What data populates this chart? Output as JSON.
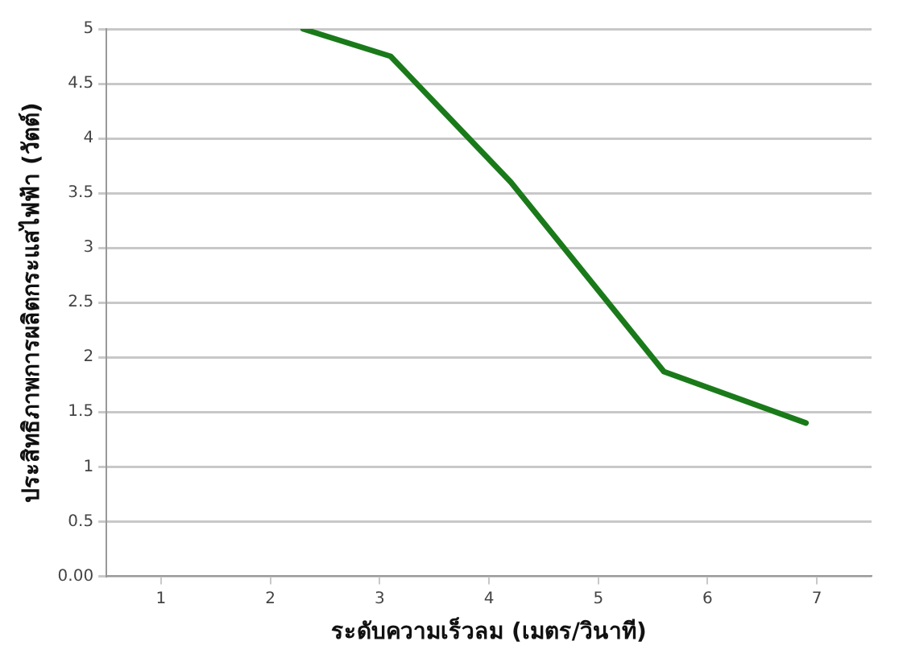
{
  "chart_data": {
    "type": "line",
    "xlabel": "ระดับความเร็วลม (เมตร/วินาที)",
    "ylabel": "ประสิทธิภาพการผลิตกระแสไฟฟ้า (วัตต์)",
    "x": [
      2.3,
      3.1,
      4.2,
      5.6,
      6.9
    ],
    "series": [
      {
        "color": "#1a7a1a",
        "values": [
          5.0,
          4.75,
          3.6,
          1.87,
          1.4
        ]
      }
    ],
    "xlim": [
      0.5,
      7.5
    ],
    "xticks": [
      1,
      2,
      3,
      4,
      5,
      6,
      7
    ],
    "ylim": [
      0,
      5
    ],
    "yticks": [
      {
        "value": 0,
        "label": "0.00"
      },
      0.5,
      1,
      1.5,
      2,
      2.5,
      3,
      3.5,
      4,
      4.5,
      5
    ],
    "grid": "y",
    "legend": false,
    "marker": "none",
    "line_style": "solid"
  }
}
